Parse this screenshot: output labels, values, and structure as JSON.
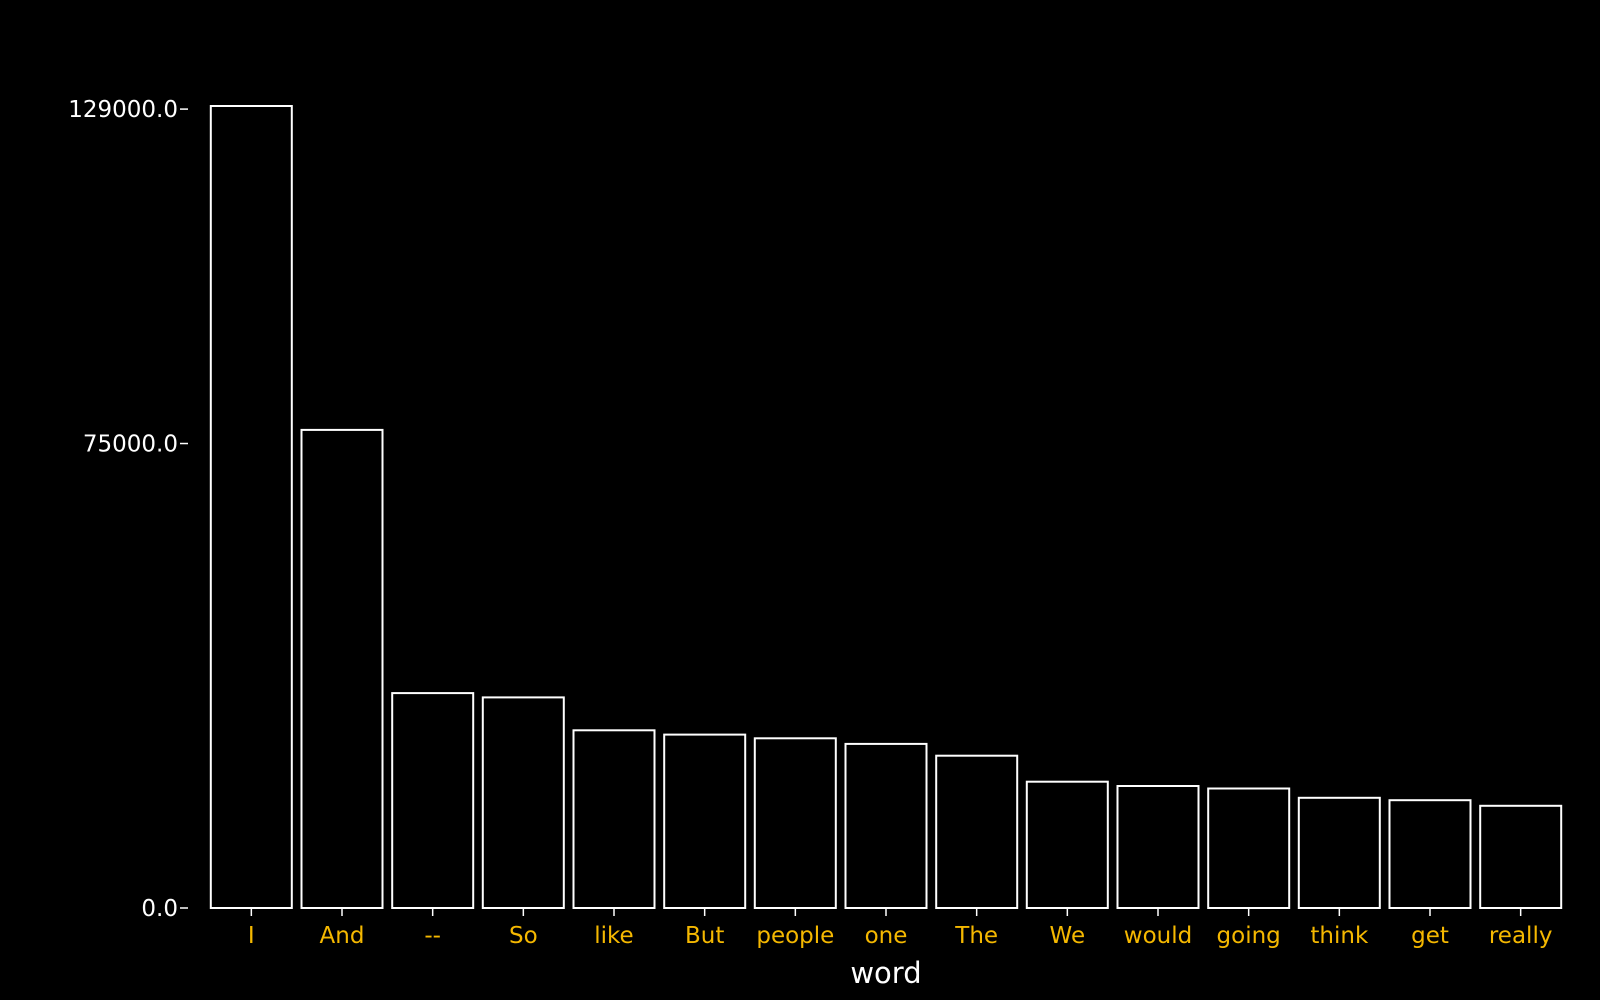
{
  "chart_data": {
    "type": "bar",
    "title": "",
    "xlabel": "word",
    "ylabel": "",
    "categories": [
      "I",
      "And",
      "--",
      "So",
      "like",
      "But",
      "people",
      "one",
      "The",
      "We",
      "would",
      "going",
      "think",
      "get",
      "really"
    ],
    "values": [
      129500,
      77200,
      34700,
      34000,
      28700,
      28000,
      27400,
      26500,
      24600,
      20400,
      19700,
      19300,
      17800,
      17400,
      16500
    ],
    "yticks": [
      0,
      75000,
      129000
    ],
    "ytick_labels": [
      "0.0",
      "75000.0",
      "129000.0"
    ],
    "ylim": [
      0,
      129500
    ],
    "grid": false,
    "colors": {
      "background": "#000000",
      "bar_fill": "#000000",
      "bar_stroke": "#ffffff",
      "axis_text": "#ffffff",
      "category_text": "#f5b800"
    }
  }
}
